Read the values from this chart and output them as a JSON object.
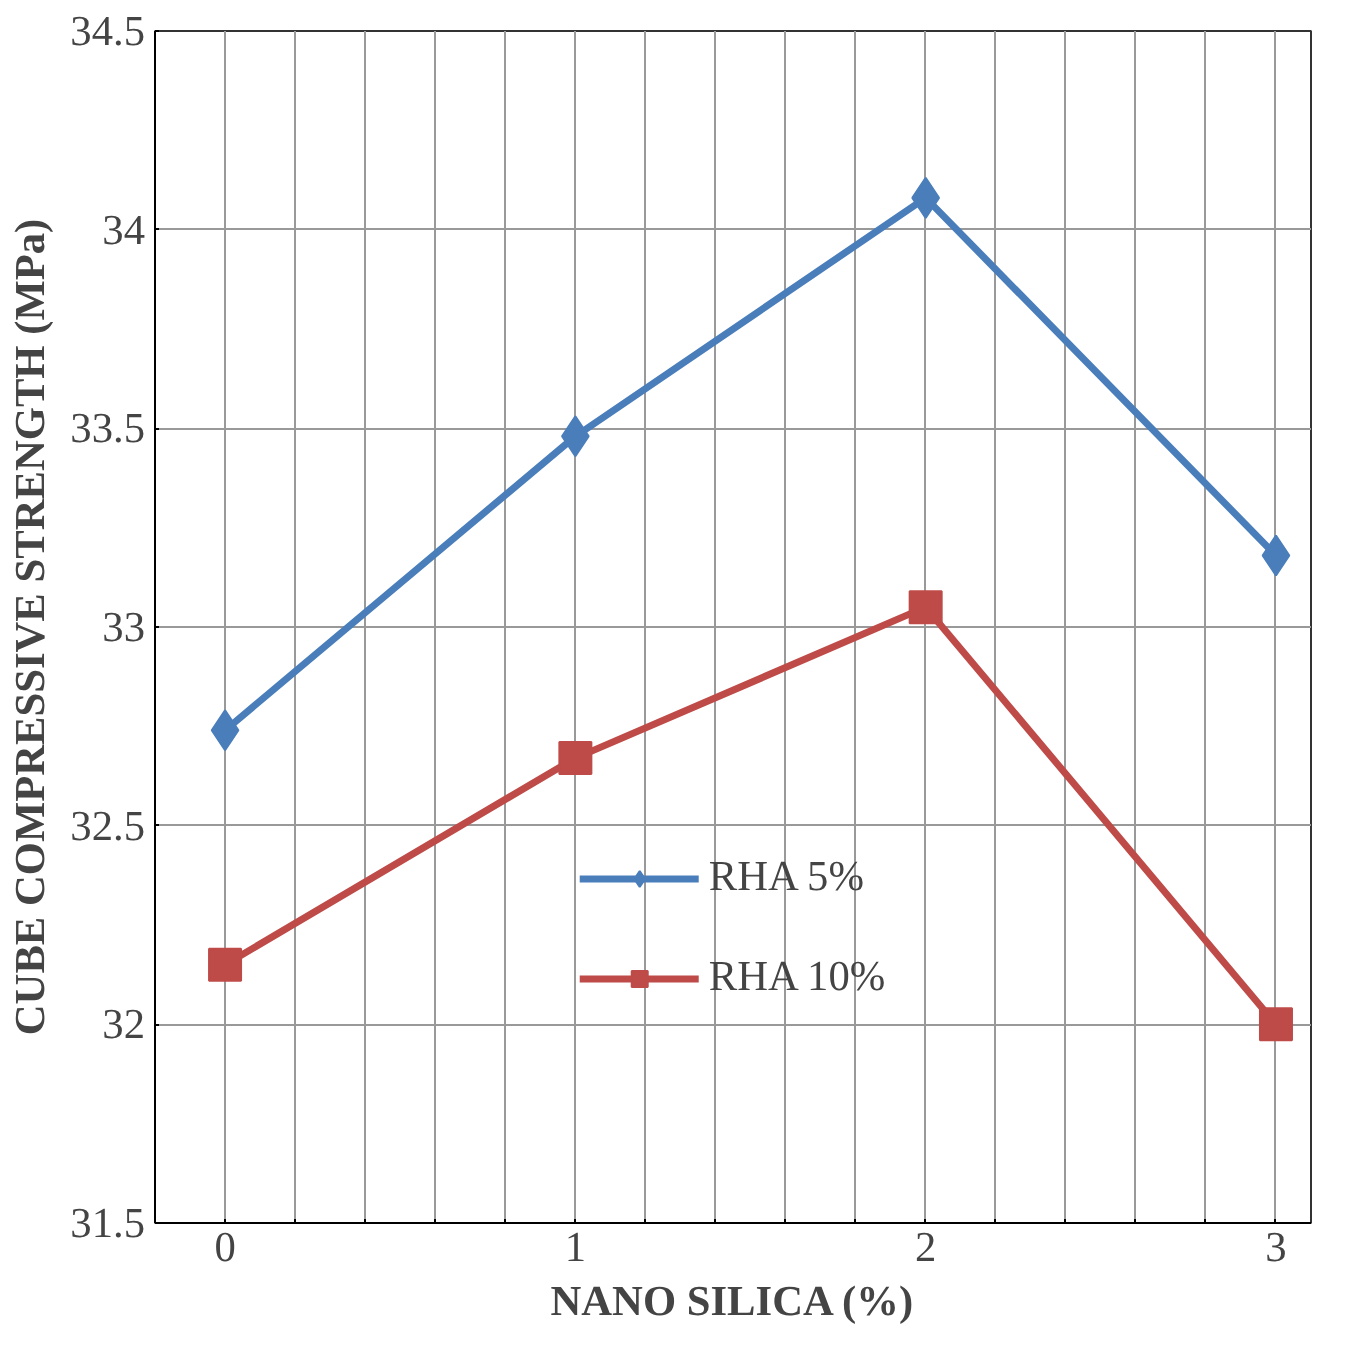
{
  "chart_data": {
    "type": "line",
    "xlabel": "NANO SILICA (%)",
    "ylabel": "CUBE COMPRESSIVE STRENGTH (MPa)",
    "x": [
      0,
      1,
      2,
      3
    ],
    "series": [
      {
        "name": "RHA 5%",
        "color": "#4a7ebb",
        "values": [
          32.74,
          33.48,
          34.08,
          33.18
        ],
        "marker": "diamond"
      },
      {
        "name": "RHA 10%",
        "color": "#be4b48",
        "values": [
          32.15,
          32.67,
          33.05,
          32.0
        ],
        "marker": "square"
      }
    ],
    "xlim": [
      -0.2,
      3.1
    ],
    "xticks": [
      0,
      {
        "value": 0.2,
        "label": null
      },
      {
        "value": 0.4,
        "label": null
      },
      {
        "value": 0.6,
        "label": null
      },
      {
        "value": 0.8,
        "label": null
      },
      1,
      {
        "value": 1.2,
        "label": null
      },
      {
        "value": 1.4,
        "label": null
      },
      {
        "value": 1.6,
        "label": null
      },
      {
        "value": 1.8,
        "label": null
      },
      2,
      {
        "value": 2.2,
        "label": null
      },
      {
        "value": 2.4,
        "label": null
      },
      {
        "value": 2.6,
        "label": null
      },
      {
        "value": 2.8,
        "label": null
      },
      3
    ],
    "ylim": [
      31.5,
      34.5
    ],
    "yticks": [
      31.5,
      32,
      32.5,
      33,
      33.5,
      34,
      34.5
    ],
    "grid": true,
    "legend": "bottom",
    "line_style": "solid"
  }
}
